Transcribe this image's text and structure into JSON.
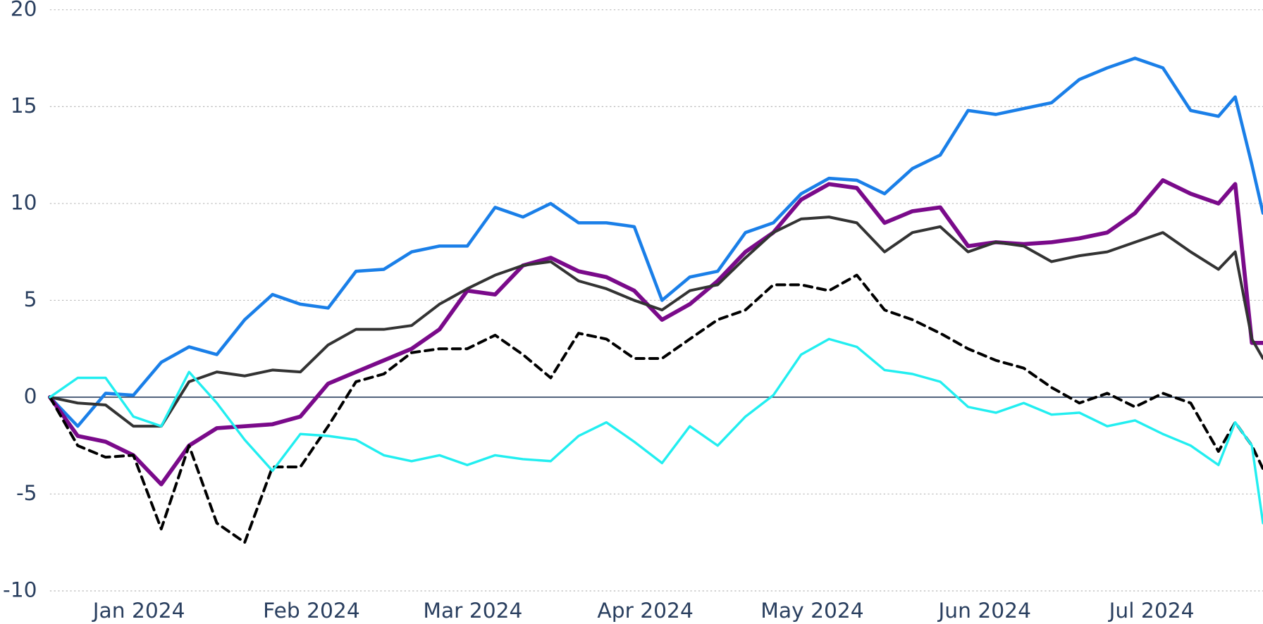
{
  "chart_data": {
    "type": "line",
    "x": [
      "2023-12-16",
      "2023-12-21",
      "2023-12-26",
      "2023-12-31",
      "2024-01-05",
      "2024-01-10",
      "2024-01-15",
      "2024-01-20",
      "2024-01-25",
      "2024-01-30",
      "2024-02-04",
      "2024-02-09",
      "2024-02-14",
      "2024-02-19",
      "2024-02-24",
      "2024-02-29",
      "2024-03-05",
      "2024-03-10",
      "2024-03-15",
      "2024-03-20",
      "2024-03-25",
      "2024-03-30",
      "2024-04-04",
      "2024-04-09",
      "2024-04-14",
      "2024-04-19",
      "2024-04-24",
      "2024-04-29",
      "2024-05-04",
      "2024-05-09",
      "2024-05-14",
      "2024-05-19",
      "2024-05-24",
      "2024-05-29",
      "2024-06-03",
      "2024-06-08",
      "2024-06-13",
      "2024-06-18",
      "2024-06-23",
      "2024-06-28",
      "2024-07-03",
      "2024-07-08",
      "2024-07-13",
      "2024-07-16",
      "2024-07-19",
      "2024-07-21"
    ],
    "series": [
      {
        "color": "#1a7fe8",
        "values": [
          0,
          -1.5,
          0.2,
          0.1,
          1.8,
          2.6,
          2.2,
          4,
          5.3,
          4.8,
          4.6,
          6.5,
          6.6,
          7.5,
          7.8,
          7.8,
          9.8,
          9.3,
          10.0,
          9.0,
          9.0,
          8.8,
          5.0,
          6.2,
          6.5,
          8.5,
          9.0,
          10.5,
          11.3,
          11.2,
          10.5,
          11.8,
          12.5,
          14.8,
          14.6,
          14.9,
          15.2,
          16.4,
          17.0,
          17.5,
          17.0,
          14.8,
          14.5,
          15.5,
          12,
          9.5
        ]
      },
      {
        "color": "#7a0a8a",
        "values": [
          0,
          -2,
          -2.3,
          -3,
          -4.5,
          -2.5,
          -1.6,
          -1.5,
          -1.4,
          -1,
          0.7,
          1.3,
          1.9,
          2.5,
          3.5,
          5.5,
          5.3,
          6.8,
          7.2,
          6.5,
          6.2,
          5.5,
          4.0,
          4.8,
          6.0,
          7.5,
          8.5,
          10.2,
          11.0,
          10.8,
          9.0,
          9.6,
          9.8,
          7.8,
          8.0,
          7.9,
          8.0,
          8.2,
          8.5,
          9.5,
          11.2,
          10.5,
          10.0,
          11.0,
          2.8,
          2.8
        ]
      },
      {
        "color": "#333333",
        "values": [
          0,
          -0.3,
          -0.4,
          -1.5,
          -1.5,
          0.8,
          1.3,
          1.1,
          1.4,
          1.3,
          2.7,
          3.5,
          3.5,
          3.7,
          4.8,
          5.6,
          6.3,
          6.8,
          7.0,
          6.0,
          5.6,
          5.0,
          4.5,
          5.5,
          5.8,
          7.2,
          8.5,
          9.2,
          9.3,
          9.0,
          7.5,
          8.5,
          8.8,
          7.5,
          8.0,
          7.8,
          7.0,
          7.3,
          7.5,
          8.0,
          8.5,
          7.5,
          6.6,
          7.5,
          3.0,
          2.0
        ]
      },
      {
        "color": "#000000",
        "dash": true,
        "values": [
          0,
          -2.5,
          -3.1,
          -3.0,
          -6.8,
          -2.5,
          -6.5,
          -7.5,
          -3.6,
          -3.6,
          -1.5,
          0.8,
          1.2,
          2.3,
          2.5,
          2.5,
          3.2,
          2.2,
          1.0,
          3.3,
          3.0,
          2.0,
          2.0,
          3.0,
          4.0,
          4.5,
          5.8,
          5.8,
          5.5,
          6.3,
          4.5,
          4.0,
          3.3,
          2.5,
          1.9,
          1.5,
          0.5,
          -0.3,
          0.2,
          -0.5,
          0.2,
          -0.3,
          -2.8,
          -1.3,
          -2.5,
          -3.7
        ]
      },
      {
        "color": "#22eef0",
        "values": [
          0,
          1.0,
          1.0,
          -1.0,
          -1.5,
          1.3,
          -0.3,
          -2.2,
          -3.8,
          -1.9,
          -2.0,
          -2.2,
          -3.0,
          -3.3,
          -3.0,
          -3.5,
          -3.0,
          -3.2,
          -3.3,
          -2.0,
          -1.3,
          -2.3,
          -3.4,
          -1.5,
          -2.5,
          -1.0,
          0.1,
          2.2,
          3.0,
          2.6,
          1.4,
          1.2,
          0.8,
          -0.5,
          -0.8,
          -0.3,
          -0.9,
          -0.8,
          -1.5,
          -1.2,
          -1.9,
          -2.5,
          -3.5,
          -1.3,
          -2.5,
          -6.5
        ]
      }
    ],
    "xlim": [
      "2023-12-16",
      "2024-07-21"
    ],
    "xticks": [
      {
        "value": "2024-01-01",
        "label": "Jan 2024"
      },
      {
        "value": "2024-02-01",
        "label": "Feb 2024"
      },
      {
        "value": "2024-03-01",
        "label": "Mar 2024"
      },
      {
        "value": "2024-04-01",
        "label": "Apr 2024"
      },
      {
        "value": "2024-05-01",
        "label": "May 2024"
      },
      {
        "value": "2024-06-01",
        "label": "Jun 2024"
      },
      {
        "value": "2024-07-01",
        "label": "Jul 2024"
      }
    ],
    "ylim": [
      -10,
      20
    ],
    "yticks": [
      -10,
      -5,
      0,
      5,
      10,
      15,
      20
    ],
    "grid": true
  }
}
